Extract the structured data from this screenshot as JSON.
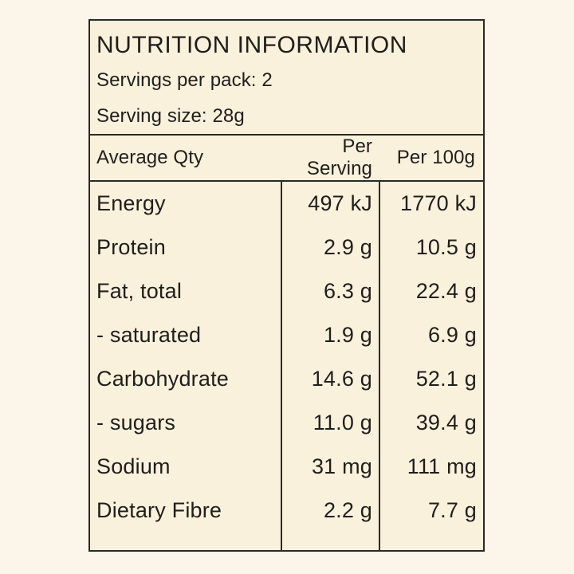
{
  "nutrition": {
    "title": "NUTRITION INFORMATION",
    "servings_per_pack": "Servings per pack: 2",
    "serving_size": "Serving size: 28g",
    "columns": [
      "Average Qty",
      "Per Serving",
      "Per 100g"
    ],
    "rows": [
      {
        "name": "Energy",
        "per_serving": "497 kJ",
        "per_100g": "1770 kJ"
      },
      {
        "name": "Protein",
        "per_serving": "2.9 g",
        "per_100g": "10.5 g"
      },
      {
        "name": "Fat, total",
        "per_serving": "6.3 g",
        "per_100g": "22.4 g"
      },
      {
        "name": "- saturated",
        "per_serving": "1.9 g",
        "per_100g": "6.9 g"
      },
      {
        "name": "Carbohydrate",
        "per_serving": "14.6 g",
        "per_100g": "52.1 g"
      },
      {
        "name": "- sugars",
        "per_serving": "11.0 g",
        "per_100g": "39.4 g"
      },
      {
        "name": "Sodium",
        "per_serving": "31 mg",
        "per_100g": "111 mg"
      },
      {
        "name": "Dietary Fibre",
        "per_serving": "2.2 g",
        "per_100g": "7.7 g"
      }
    ],
    "colors": {
      "page_background": "#FCF5EA",
      "panel_background": "#FAF1DD",
      "border": "#2B2A23",
      "text": "#201E19"
    }
  }
}
